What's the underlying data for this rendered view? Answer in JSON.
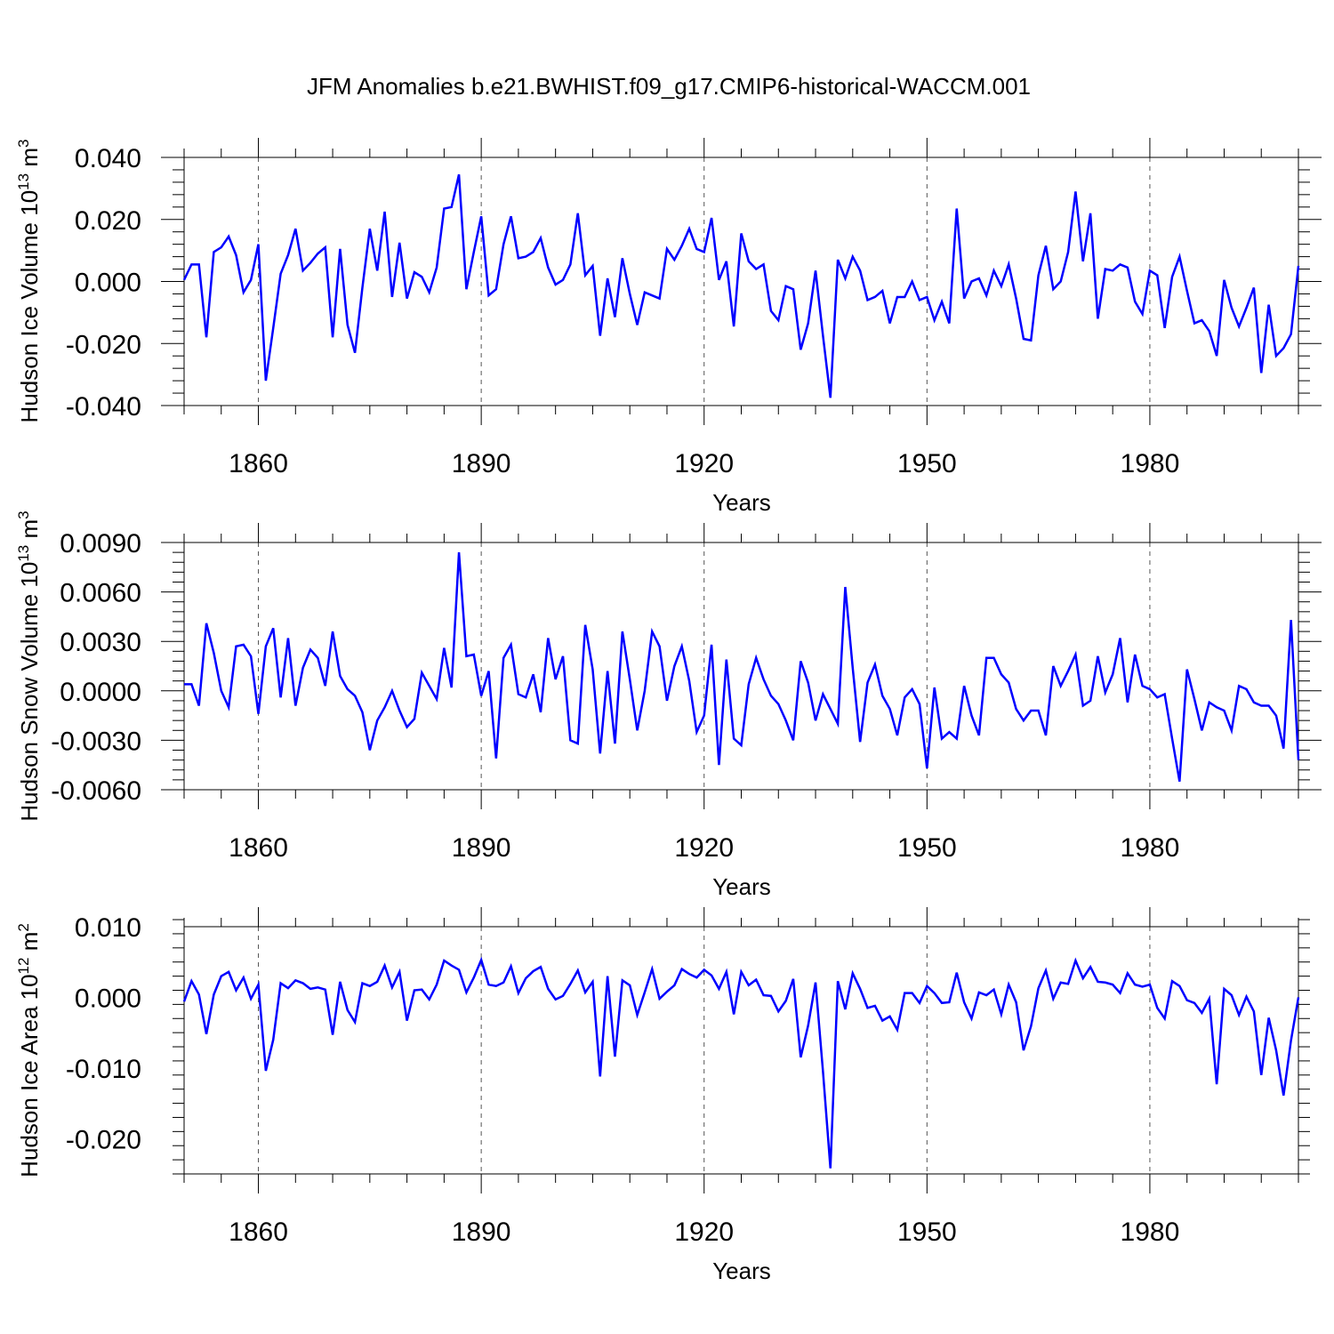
{
  "title": "JFM Anomalies b.e21.BWHIST.f09_g17.CMIP6-historical-WACCM.001",
  "colors": {
    "line": "#0000ff",
    "axis": "#000000",
    "grid": "#555555"
  },
  "chart_data": [
    {
      "type": "line",
      "ylabel_text": "Hudson Ice Volume 10",
      "ylabel_exp": "13",
      "ylabel_unit": " m",
      "ylabel_unit_exp": "3",
      "xlabel": "Years",
      "xlim": [
        1850,
        2000
      ],
      "ylim": [
        -0.04,
        0.04
      ],
      "yticks": [
        -0.04,
        -0.02,
        0.0,
        0.02,
        0.04
      ],
      "yticklabels": [
        "-0.040",
        "-0.020",
        "0.000",
        "0.020",
        "0.040"
      ],
      "xticks": [
        1860,
        1890,
        1920,
        1950,
        1980
      ],
      "xticklabels": [
        "1860",
        "1890",
        "1920",
        "1950",
        "1980"
      ],
      "series": [
        {
          "name": "Hudson Ice Volume",
          "x_start": 1850,
          "values": [
            0.0005,
            0.0055,
            0.0055,
            -0.018,
            0.0095,
            0.011,
            0.0145,
            0.0085,
            -0.0035,
            0.0005,
            0.012,
            -0.032,
            -0.015,
            0.0025,
            0.0085,
            0.017,
            0.0035,
            0.006,
            0.009,
            0.011,
            -0.018,
            0.0105,
            -0.014,
            -0.023,
            -0.002,
            0.017,
            0.0035,
            0.0225,
            -0.005,
            0.0125,
            -0.0055,
            0.003,
            0.0015,
            -0.0035,
            0.0045,
            0.0235,
            0.024,
            0.0345,
            -0.0025,
            0.0095,
            0.021,
            -0.0045,
            -0.0025,
            0.012,
            0.021,
            0.0075,
            0.008,
            0.0095,
            0.014,
            0.0045,
            -0.001,
            0.0005,
            0.0055,
            0.022,
            0.002,
            0.005,
            -0.0175,
            0.001,
            -0.0115,
            0.0075,
            -0.004,
            -0.014,
            -0.0035,
            -0.0045,
            -0.0055,
            0.0105,
            0.007,
            0.0115,
            0.017,
            0.0105,
            0.0095,
            0.0205,
            0.0005,
            0.0065,
            -0.0145,
            0.0155,
            0.0065,
            0.004,
            0.0055,
            -0.0095,
            -0.0125,
            -0.0015,
            -0.0025,
            -0.022,
            -0.0135,
            0.0035,
            -0.0175,
            -0.0375,
            0.007,
            0.001,
            0.008,
            0.0035,
            -0.006,
            -0.005,
            -0.003,
            -0.0135,
            -0.005,
            -0.005,
            0.0,
            -0.006,
            -0.005,
            -0.0125,
            -0.0065,
            -0.0135,
            0.0235,
            -0.0055,
            0.0,
            0.001,
            -0.0045,
            0.0035,
            -0.0015,
            0.0055,
            -0.0055,
            -0.0185,
            -0.019,
            0.002,
            0.0115,
            -0.0025,
            0.0,
            0.0095,
            0.029,
            0.0065,
            0.022,
            -0.012,
            0.004,
            0.0035,
            0.0055,
            0.0045,
            -0.0065,
            -0.0105,
            0.0035,
            0.002,
            -0.015,
            0.0015,
            0.008,
            -0.003,
            -0.0135,
            -0.0125,
            -0.016,
            -0.024,
            0.0005,
            -0.0085,
            -0.0145,
            -0.0085,
            -0.002,
            -0.0295,
            -0.0075,
            -0.024,
            -0.0215,
            -0.017,
            0.005
          ]
        }
      ]
    },
    {
      "type": "line",
      "ylabel_text": "Hudson Snow Volume 10",
      "ylabel_exp": "13",
      "ylabel_unit": " m",
      "ylabel_unit_exp": "3",
      "xlabel": "Years",
      "xlim": [
        1850,
        2000
      ],
      "ylim": [
        -0.006,
        0.009
      ],
      "yticks": [
        -0.006,
        -0.003,
        0.0,
        0.003,
        0.006,
        0.009
      ],
      "yticklabels": [
        "-0.0060",
        "-0.0030",
        "0.0000",
        "0.0030",
        "0.0060",
        "0.0090"
      ],
      "xticks": [
        1860,
        1890,
        1920,
        1950,
        1980
      ],
      "xticklabels": [
        "1860",
        "1890",
        "1920",
        "1950",
        "1980"
      ],
      "series": [
        {
          "name": "Hudson Snow Volume",
          "x_start": 1850,
          "values": [
            0.0004,
            0.0004,
            -0.0009,
            0.0041,
            0.0023,
            0.0,
            -0.001,
            0.0027,
            0.0028,
            0.0021,
            -0.0014,
            0.0027,
            0.0038,
            -0.0004,
            0.0032,
            -0.0009,
            0.0014,
            0.0025,
            0.002,
            0.0003,
            0.0036,
            0.0009,
            0.0001,
            -0.0003,
            -0.0013,
            -0.0036,
            -0.0018,
            -0.001,
            0.0,
            -0.0012,
            -0.0022,
            -0.0017,
            0.0011,
            0.0003,
            -0.0005,
            0.0026,
            0.0002,
            0.0084,
            0.0021,
            0.0022,
            -0.0003,
            0.0012,
            -0.0041,
            0.002,
            0.0028,
            -0.0002,
            -0.0004,
            0.001,
            -0.0013,
            0.0032,
            0.0007,
            0.0021,
            -0.003,
            -0.0032,
            0.004,
            0.0013,
            -0.0038,
            0.0012,
            -0.0032,
            0.0036,
            0.0007,
            -0.0024,
            0.0,
            0.0036,
            0.0027,
            -0.0006,
            0.0015,
            0.0027,
            0.0006,
            -0.0025,
            -0.0015,
            0.0028,
            -0.0045,
            0.0019,
            -0.0029,
            -0.0033,
            0.0004,
            0.002,
            0.0007,
            -0.0003,
            -0.0008,
            -0.0018,
            -0.003,
            0.0018,
            0.0005,
            -0.0018,
            -0.0002,
            -0.0011,
            -0.002,
            0.0063,
            0.0014,
            -0.0031,
            0.0005,
            0.0016,
            -0.0003,
            -0.0011,
            -0.0027,
            -0.0004,
            0.0001,
            -0.0008,
            -0.0047,
            0.0002,
            -0.0029,
            -0.0025,
            -0.0029,
            0.0003,
            -0.0015,
            -0.0027,
            0.002,
            0.002,
            0.001,
            0.0005,
            -0.0011,
            -0.0018,
            -0.0012,
            -0.0012,
            -0.0027,
            0.0015,
            0.0003,
            0.0012,
            0.0022,
            -0.0009,
            -0.0006,
            0.0021,
            -0.0001,
            0.001,
            0.0032,
            -0.0007,
            0.0022,
            0.0003,
            0.0001,
            -0.0004,
            -0.0002,
            -0.0029,
            -0.0055,
            0.0013,
            -0.0005,
            -0.0024,
            -0.0007,
            -0.001,
            -0.0012,
            -0.0024,
            0.0003,
            0.0001,
            -0.0007,
            -0.0009,
            -0.0009,
            -0.0015,
            -0.0035,
            0.0043,
            -0.0042
          ]
        }
      ]
    },
    {
      "type": "line",
      "ylabel_text": "Hudson Ice Area 10",
      "ylabel_exp": "12",
      "ylabel_unit": " m",
      "ylabel_unit_exp": "2",
      "xlabel": "Years",
      "xlim": [
        1850,
        2000
      ],
      "ylim": [
        -0.025,
        0.01
      ],
      "yticks": [
        -0.02,
        -0.01,
        0.0,
        0.01
      ],
      "yticklabels": [
        "-0.020",
        "-0.010",
        "0.000",
        "0.010"
      ],
      "xticks": [
        1860,
        1890,
        1920,
        1950,
        1980
      ],
      "xticklabels": [
        "1860",
        "1890",
        "1920",
        "1950",
        "1980"
      ],
      "series": [
        {
          "name": "Hudson Ice Area",
          "x_start": 1850,
          "values": [
            -0.0006,
            0.0023,
            0.0004,
            -0.0052,
            0.0004,
            0.003,
            0.0036,
            0.001,
            0.0028,
            -0.0002,
            0.0018,
            -0.0104,
            -0.006,
            0.002,
            0.0013,
            0.0024,
            0.002,
            0.0012,
            0.0014,
            0.0011,
            -0.0053,
            0.0022,
            -0.0018,
            -0.0035,
            0.002,
            0.0016,
            0.0022,
            0.0045,
            0.0014,
            0.0036,
            -0.0033,
            0.001,
            0.0011,
            -0.0003,
            0.0018,
            0.0052,
            0.0045,
            0.0039,
            0.0007,
            0.0028,
            0.0053,
            0.0018,
            0.0016,
            0.0021,
            0.0044,
            0.0006,
            0.0027,
            0.0037,
            0.0043,
            0.0012,
            -0.0003,
            0.0002,
            0.0019,
            0.0038,
            0.0007,
            0.0022,
            -0.0112,
            0.003,
            -0.0084,
            0.0024,
            0.0017,
            -0.0025,
            0.0007,
            0.004,
            -0.0002,
            0.0008,
            0.0017,
            0.004,
            0.0033,
            0.0028,
            0.0039,
            0.0031,
            0.0012,
            0.0036,
            -0.0024,
            0.0036,
            0.0017,
            0.0025,
            0.0003,
            0.0002,
            -0.002,
            -0.0005,
            0.0026,
            -0.0085,
            -0.004,
            0.0021,
            -0.0105,
            -0.0242,
            0.0023,
            -0.0017,
            0.0034,
            0.0012,
            -0.0015,
            -0.0012,
            -0.0033,
            -0.0027,
            -0.0046,
            0.0006,
            0.0006,
            -0.0008,
            0.0016,
            0.0006,
            -0.0008,
            -0.0007,
            0.0035,
            -0.0007,
            -0.003,
            0.0007,
            0.0003,
            0.0011,
            -0.0024,
            0.0018,
            -0.0007,
            -0.0075,
            -0.0041,
            0.0013,
            0.0038,
            -0.0002,
            0.0021,
            0.0019,
            0.0052,
            0.0027,
            0.0043,
            0.0022,
            0.0021,
            0.0018,
            0.0006,
            0.0034,
            0.0018,
            0.0015,
            0.0018,
            -0.0015,
            -0.003,
            0.0023,
            0.0016,
            -0.0004,
            -0.0008,
            -0.0022,
            -0.0002,
            -0.0123,
            0.0012,
            0.0003,
            -0.0025,
            0.0001,
            -0.002,
            -0.011,
            -0.0029,
            -0.0075,
            -0.0139,
            -0.0061,
            0.0
          ]
        }
      ]
    }
  ]
}
